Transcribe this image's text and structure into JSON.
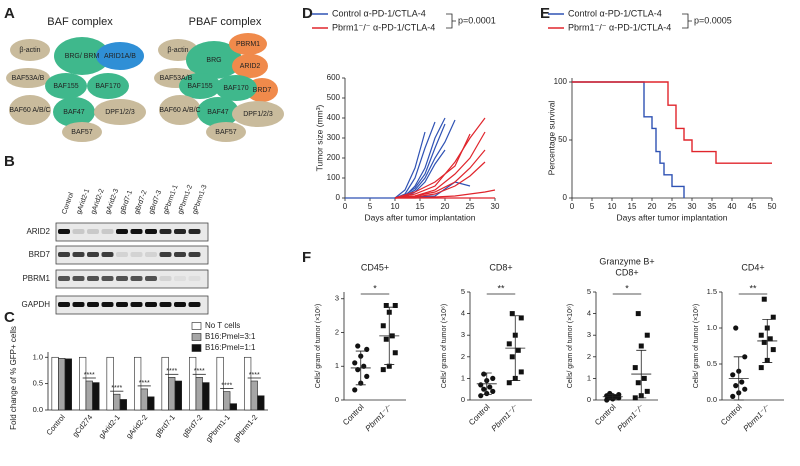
{
  "panel_labels": [
    "A",
    "B",
    "C",
    "D",
    "E",
    "F"
  ],
  "panel_a": {
    "baf": {
      "title": "BAF complex",
      "nodes": [
        {
          "label": "β-actin",
          "color": "#c9bb9c"
        },
        {
          "label": "BRG/ BRM",
          "color": "#3fb88c"
        },
        {
          "label": "ARID1A/B",
          "color": "#2f8fd6"
        },
        {
          "label": "BAF53A/B",
          "color": "#c9bb9c"
        },
        {
          "label": "BAF155",
          "color": "#3fb88c"
        },
        {
          "label": "BAF170",
          "color": "#3fb88c"
        },
        {
          "label": "BAF60 A/B/C",
          "color": "#c9bb9c"
        },
        {
          "label": "BAF47",
          "color": "#3fb88c"
        },
        {
          "label": "DPF1/2/3",
          "color": "#c9bb9c"
        },
        {
          "label": "BAF57",
          "color": "#c9bb9c"
        }
      ]
    },
    "pbaf": {
      "title": "PBAF complex",
      "nodes": [
        {
          "label": "β-actin",
          "color": "#c9bb9c"
        },
        {
          "label": "BRG",
          "color": "#3fb88c"
        },
        {
          "label": "PBRM1",
          "color": "#f08a4b"
        },
        {
          "label": "ARID2",
          "color": "#f08a4b"
        },
        {
          "label": "BAF53A/B",
          "color": "#c9bb9c"
        },
        {
          "label": "BRD7",
          "color": "#f08a4b"
        },
        {
          "label": "BAF155",
          "color": "#3fb88c"
        },
        {
          "label": "BAF170",
          "color": "#3fb88c"
        },
        {
          "label": "BAF60 A/B/C",
          "color": "#c9bb9c"
        },
        {
          "label": "BAF47",
          "color": "#3fb88c"
        },
        {
          "label": "DPF1/2/3",
          "color": "#c9bb9c"
        },
        {
          "label": "BAF57",
          "color": "#c9bb9c"
        }
      ]
    }
  },
  "panel_b": {
    "lanes": [
      "Control",
      "gArid2-1",
      "gArid2-2",
      "gArid2-3",
      "gBrd7-1",
      "gBrd7-2",
      "gBrd7-3",
      "gPbrm1-1",
      "gPbrm1-2",
      "gPbrm1-3"
    ],
    "rows": [
      "ARID2",
      "BRD7",
      "PBRM1",
      "GAPDH"
    ]
  },
  "panel_c": {
    "type": "bar",
    "ylabel": "Fold change of % GFP+ cells",
    "categories": [
      "Control",
      "gCd274",
      "gArid2-1",
      "gArid2-2",
      "gBrd7-1",
      "gBrd7-2",
      "gPbrm1-1",
      "gPbrm1-2"
    ],
    "series": [
      {
        "name": "No T cells",
        "color": "#ffffff",
        "values": [
          1,
          1,
          1,
          1,
          1,
          1,
          1,
          1
        ]
      },
      {
        "name": "B16:Pmel=3:1",
        "color": "#a6a6a6",
        "values": [
          0.98,
          0.55,
          0.3,
          0.4,
          0.62,
          0.62,
          0.35,
          0.55
        ]
      },
      {
        "name": "B16:Pmel=1:1",
        "color": "#111111",
        "values": [
          0.97,
          0.52,
          0.2,
          0.25,
          0.55,
          0.52,
          0.12,
          0.27
        ]
      }
    ],
    "annotations": [
      "****",
      "****",
      "****",
      "****",
      "****",
      "****",
      "****"
    ],
    "ylim": [
      0,
      1.1
    ],
    "yticks": [
      {
        "value": 0,
        "label": "0.0"
      },
      {
        "value": 0.5,
        "label": "0.5"
      },
      {
        "value": 1,
        "label": "1.0"
      }
    ]
  },
  "panel_d": {
    "type": "line",
    "ylabel": "Tumor size (mm³)",
    "xlabel": "Days after tumor implantation",
    "p_value": "p=0.0001",
    "xlim": [
      0,
      30
    ],
    "xticks": [
      0,
      5,
      10,
      15,
      20,
      25,
      30
    ],
    "ylim": [
      0,
      600
    ],
    "yticks": [
      0,
      100,
      200,
      300,
      400,
      500,
      600
    ],
    "series": [
      {
        "name": "Control α-PD-1/CTLA-4",
        "color": "#2f52b4",
        "mice": [
          {
            "x": [
              10,
              12,
              14,
              16,
              18
            ],
            "values": [
              0,
              20,
              100,
              250,
              380
            ]
          },
          {
            "x": [
              10,
              12,
              14,
              16,
              18,
              20
            ],
            "values": [
              0,
              10,
              60,
              150,
              300,
              400
            ]
          },
          {
            "x": [
              10,
              12,
              14,
              16,
              18,
              20,
              22
            ],
            "values": [
              0,
              10,
              40,
              100,
              200,
              280,
              390
            ]
          },
          {
            "x": [
              10,
              12,
              14,
              16
            ],
            "values": [
              0,
              40,
              150,
              330
            ]
          },
          {
            "x": [
              10,
              12,
              14,
              16,
              18,
              20
            ],
            "values": [
              0,
              5,
              30,
              80,
              170,
              240
            ]
          },
          {
            "x": [
              10,
              12,
              14,
              16,
              18,
              20
            ],
            "values": [
              0,
              15,
              50,
              120,
              250,
              370
            ]
          },
          {
            "x": [
              0,
              10,
              14,
              18,
              22,
              25
            ],
            "values": [
              0,
              0,
              5,
              10,
              80,
              60
            ]
          }
        ]
      },
      {
        "name": "Pbrm1⁻/⁻ α-PD-1/CTLA-4",
        "color": "#e0252c",
        "mice": [
          {
            "x": [
              10,
              14,
              18,
              22,
              25,
              28
            ],
            "values": [
              0,
              20,
              60,
              180,
              300,
              400
            ]
          },
          {
            "x": [
              10,
              14,
              18,
              22,
              25,
              28
            ],
            "values": [
              0,
              10,
              40,
              120,
              200,
              330
            ]
          },
          {
            "x": [
              10,
              14,
              18,
              22,
              25
            ],
            "values": [
              0,
              30,
              80,
              160,
              320
            ]
          },
          {
            "x": [
              10,
              14,
              18,
              22,
              25,
              28
            ],
            "values": [
              0,
              5,
              20,
              60,
              110,
              180
            ]
          },
          {
            "x": [
              10,
              14,
              18,
              22,
              25,
              28,
              30
            ],
            "values": [
              0,
              0,
              5,
              10,
              20,
              30,
              40
            ]
          },
          {
            "x": [
              10,
              14,
              18,
              22,
              25,
              28,
              30
            ],
            "values": [
              0,
              0,
              0,
              0,
              0,
              0,
              0
            ]
          },
          {
            "x": [
              10,
              14,
              18,
              22,
              25,
              28
            ],
            "values": [
              0,
              10,
              30,
              80,
              150,
              240
            ]
          }
        ]
      }
    ]
  },
  "panel_e": {
    "type": "step",
    "ylabel": "Percentage survival",
    "xlabel": "Days after tumor implantation",
    "p_value": "p=0.0005",
    "xlim": [
      0,
      50
    ],
    "xticks": [
      0,
      5,
      10,
      15,
      20,
      25,
      30,
      35,
      40,
      45,
      50
    ],
    "ylim": [
      0,
      100
    ],
    "yticks": [
      0,
      50,
      100
    ],
    "series": [
      {
        "name": "Control α-PD-1/CTLA-4",
        "color": "#2f52b4",
        "x": [
          0,
          18,
          20,
          21,
          22,
          23,
          25,
          28
        ],
        "values": [
          100,
          70,
          60,
          40,
          30,
          20,
          10,
          0
        ]
      },
      {
        "name": "Pbrm1⁻/⁻ α-PD-1/CTLA-4",
        "color": "#e0252c",
        "x": [
          0,
          24,
          26,
          28,
          30,
          32,
          36,
          50
        ],
        "values": [
          100,
          80,
          60,
          50,
          40,
          40,
          30,
          30
        ]
      }
    ]
  },
  "panel_f": {
    "type": "scatter",
    "categories": [
      "Control",
      "Pbrm1⁻/⁻"
    ],
    "ylabel": "Cells/ gram of tumor (×10⁶)",
    "plots": [
      {
        "title": "CD45+",
        "significance": "*",
        "ylim": [
          0,
          3.2
        ],
        "yticks": [
          0,
          1,
          2,
          3
        ],
        "groups": [
          {
            "values": [
              0.3,
              0.5,
              0.7,
              0.9,
              1.0,
              1.1,
              1.3,
              1.5,
              1.6
            ],
            "mean": 0.95,
            "sd": 0.5
          },
          {
            "values": [
              0.9,
              1.0,
              1.4,
              1.8,
              1.9,
              2.2,
              2.6,
              2.8,
              2.8
            ],
            "mean": 1.9,
            "sd": 0.85
          }
        ]
      },
      {
        "title": "CD8+",
        "significance": "**",
        "ylim": [
          0,
          5
        ],
        "yticks": [
          0,
          1,
          2,
          3,
          4,
          5
        ],
        "groups": [
          {
            "values": [
              0.2,
              0.3,
              0.4,
              0.5,
              0.6,
              0.7,
              0.9,
              1.0,
              1.2
            ],
            "mean": 0.75,
            "sd": 0.5
          },
          {
            "values": [
              0.8,
              1.0,
              1.3,
              2.0,
              2.3,
              2.6,
              3.0,
              3.8,
              4.0
            ],
            "mean": 2.4,
            "sd": 1.5
          }
        ]
      },
      {
        "title": [
          "Granzyme B+",
          "CD8+"
        ],
        "significance": "*",
        "ylim": [
          0,
          5
        ],
        "yticks": [
          0,
          1,
          2,
          3,
          4,
          5
        ],
        "groups": [
          {
            "values": [
              0.0,
              0.05,
              0.1,
              0.1,
              0.15,
              0.2,
              0.2,
              0.25,
              0.3
            ],
            "mean": 0.15,
            "sd": 0.1
          },
          {
            "values": [
              0.1,
              0.2,
              0.4,
              0.8,
              1.0,
              1.5,
              2.5,
              3.0,
              4.0
            ],
            "mean": 1.2,
            "sd": 1.1
          }
        ]
      },
      {
        "title": "CD4+",
        "significance": "**",
        "ylim": [
          0,
          1.5
        ],
        "yticks": [
          {
            "value": 0,
            "label": "0.0"
          },
          {
            "value": 0.5,
            "label": "0.5"
          },
          {
            "value": 1,
            "label": "1.0"
          },
          {
            "value": 1.5,
            "label": "1.5"
          }
        ],
        "groups": [
          {
            "values": [
              0.05,
              0.1,
              0.15,
              0.2,
              0.25,
              0.35,
              0.4,
              0.6,
              1.0
            ],
            "mean": 0.3,
            "sd": 0.3
          },
          {
            "values": [
              0.45,
              0.55,
              0.7,
              0.8,
              0.85,
              0.9,
              1.0,
              1.15,
              1.4
            ],
            "mean": 0.82,
            "sd": 0.3
          }
        ]
      }
    ]
  }
}
